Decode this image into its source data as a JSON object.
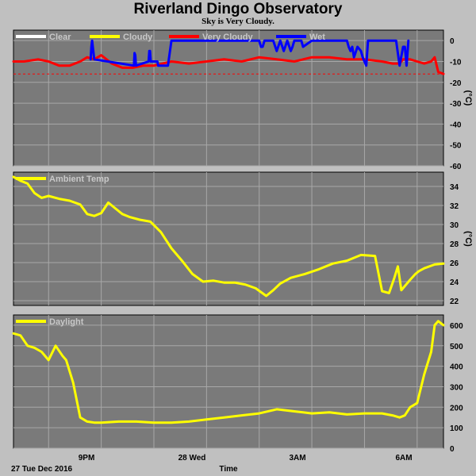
{
  "title": "Riverland Dingo Observatory",
  "subtitle": "Sky is Very Cloudy.",
  "date_label": "27 Tue Dec 2016",
  "time_label": "Time",
  "chart_data": [
    {
      "type": "line",
      "name": "cloud",
      "unit": "(°C)",
      "ylim": [
        -60,
        5
      ],
      "yticks": [
        0,
        -10,
        -20,
        -30,
        -40,
        -50,
        -60
      ],
      "threshold": -16,
      "legend": [
        "Clear",
        "Cloudy",
        "Very Cloudy",
        "Wet"
      ],
      "legend_colors": [
        "#ffffff",
        "#ffff00",
        "#ff0000",
        "#0000ff"
      ],
      "x_ticks": [
        "9PM",
        "28 Wed",
        "3AM",
        "6AM"
      ],
      "x_tick_hours": [
        21,
        24,
        27,
        30
      ],
      "xlim": [
        18.5,
        30.75
      ],
      "series": [
        {
          "name": "Very Cloudy",
          "color": "#ff0000",
          "x": [
            18.5,
            18.8,
            19.2,
            19.5,
            19.8,
            20.1,
            20.4,
            20.6,
            20.8,
            21.0,
            21.3,
            21.6,
            21.9,
            22.2,
            22.5,
            23.0,
            23.5,
            24.0,
            24.5,
            25.0,
            25.5,
            26.0,
            26.5,
            27.0,
            27.5,
            28.0,
            28.5,
            29.0,
            29.3,
            29.5,
            29.6,
            29.8,
            30.0,
            30.2,
            30.4,
            30.5,
            30.6,
            30.75
          ],
          "values": [
            -10,
            -10,
            -9,
            -10,
            -12,
            -12,
            -10,
            -8,
            -9,
            -7,
            -11,
            -13,
            -13,
            -12,
            -12,
            -10,
            -11,
            -10,
            -9,
            -10,
            -8,
            -9,
            -10,
            -8,
            -8,
            -9,
            -9,
            -10,
            -11,
            -11,
            -9,
            -9,
            -10,
            -11,
            -10,
            -8,
            -15,
            -16
          ]
        },
        {
          "name": "Wet",
          "color": "#0000ff",
          "x": [
            20.7,
            20.72,
            20.74,
            20.78,
            20.8,
            21.93,
            21.95,
            21.97,
            21.99,
            22.35,
            22.37,
            22.39,
            22.41,
            22.6,
            22.62,
            22.9,
            23.0,
            24.0,
            25.0,
            25.5,
            25.55,
            25.6,
            25.65,
            25.9,
            26.0,
            26.1,
            26.2,
            26.3,
            26.4,
            26.45,
            26.5,
            26.7,
            26.75,
            27.0,
            27.5,
            28.0,
            28.05,
            28.1,
            28.15,
            28.2,
            28.3,
            28.4,
            28.45,
            28.5,
            28.55,
            28.6,
            28.7,
            29.0,
            29.2,
            29.4,
            29.5,
            29.6,
            29.65,
            29.7,
            29.75
          ],
          "values": [
            -9,
            -3,
            0,
            -6,
            -9,
            -12,
            -6,
            -7,
            -12,
            -10,
            -5,
            -5,
            -10,
            -10,
            -12,
            -12,
            0,
            0,
            0,
            0,
            -3,
            -3,
            0,
            0,
            -5,
            0,
            -5,
            0,
            -5,
            -3,
            0,
            0,
            -3,
            0,
            0,
            0,
            -3,
            -5,
            -3,
            -8,
            -3,
            -5,
            -8,
            -10,
            -12,
            0,
            0,
            0,
            0,
            0,
            -12,
            -3,
            -3,
            -12,
            0
          ]
        }
      ]
    },
    {
      "type": "line",
      "name": "ambient",
      "unit": "(°C)",
      "ylim": [
        21.5,
        35.5
      ],
      "yticks": [
        34,
        32,
        30,
        28,
        26,
        24,
        22
      ],
      "legend": [
        "Ambient Temp"
      ],
      "legend_colors": [
        "#ffff00"
      ],
      "x_tick_hours": [
        21,
        24,
        27,
        30
      ],
      "xlim": [
        18.5,
        30.75
      ],
      "series": [
        {
          "name": "Ambient Temp",
          "color": "#ffff00",
          "x": [
            18.5,
            18.7,
            18.9,
            19.1,
            19.3,
            19.5,
            19.8,
            20.1,
            20.4,
            20.6,
            20.8,
            21.0,
            21.2,
            21.4,
            21.6,
            21.8,
            22.1,
            22.4,
            22.7,
            23.0,
            23.3,
            23.6,
            23.9,
            24.2,
            24.5,
            24.8,
            25.1,
            25.4,
            25.7,
            25.9,
            26.1,
            26.4,
            26.8,
            27.2,
            27.6,
            28.0,
            28.4,
            28.8,
            29.0,
            29.2,
            29.35,
            29.45,
            29.55,
            29.8,
            29.95,
            30.05,
            30.2,
            30.5,
            30.75
          ],
          "values": [
            35,
            34.6,
            34.3,
            33.3,
            32.8,
            33,
            32.7,
            32.5,
            32.1,
            31.1,
            30.9,
            31.2,
            32.3,
            31.7,
            31.1,
            30.8,
            30.5,
            30.3,
            29.2,
            27.5,
            26.2,
            24.8,
            24,
            24.1,
            23.9,
            23.9,
            23.7,
            23.3,
            22.5,
            23.1,
            23.8,
            24.4,
            24.8,
            25.3,
            25.9,
            26.2,
            26.8,
            26.7,
            23,
            22.8,
            24.4,
            25.6,
            23.1,
            24.2,
            24.8,
            25.1,
            25.4,
            25.8,
            25.9
          ]
        }
      ]
    },
    {
      "type": "line",
      "name": "daylight",
      "unit": "",
      "ylim": [
        0,
        650
      ],
      "yticks": [
        600,
        500,
        400,
        300,
        200,
        100,
        0
      ],
      "legend": [
        "Daylight"
      ],
      "legend_colors": [
        "#ffff00"
      ],
      "x_tick_hours": [
        21,
        24,
        27,
        30
      ],
      "xlim": [
        18.5,
        30.75
      ],
      "series": [
        {
          "name": "Daylight",
          "color": "#ffff00",
          "x": [
            18.5,
            18.7,
            18.9,
            19.1,
            19.3,
            19.5,
            19.7,
            19.9,
            20.0,
            20.2,
            20.4,
            20.6,
            20.8,
            21.0,
            21.5,
            22.0,
            22.5,
            23.0,
            23.5,
            24.0,
            24.5,
            25.0,
            25.5,
            26.0,
            26.5,
            27.0,
            27.5,
            28.0,
            28.5,
            29.0,
            29.3,
            29.5,
            29.65,
            29.8,
            30.0,
            30.2,
            30.4,
            30.5,
            30.6,
            30.75
          ],
          "values": [
            560,
            550,
            500,
            490,
            470,
            430,
            500,
            450,
            430,
            320,
            150,
            130,
            125,
            125,
            130,
            130,
            125,
            125,
            130,
            140,
            150,
            160,
            170,
            190,
            180,
            170,
            175,
            165,
            170,
            170,
            160,
            150,
            160,
            200,
            220,
            360,
            470,
            600,
            620,
            600
          ]
        }
      ]
    }
  ]
}
